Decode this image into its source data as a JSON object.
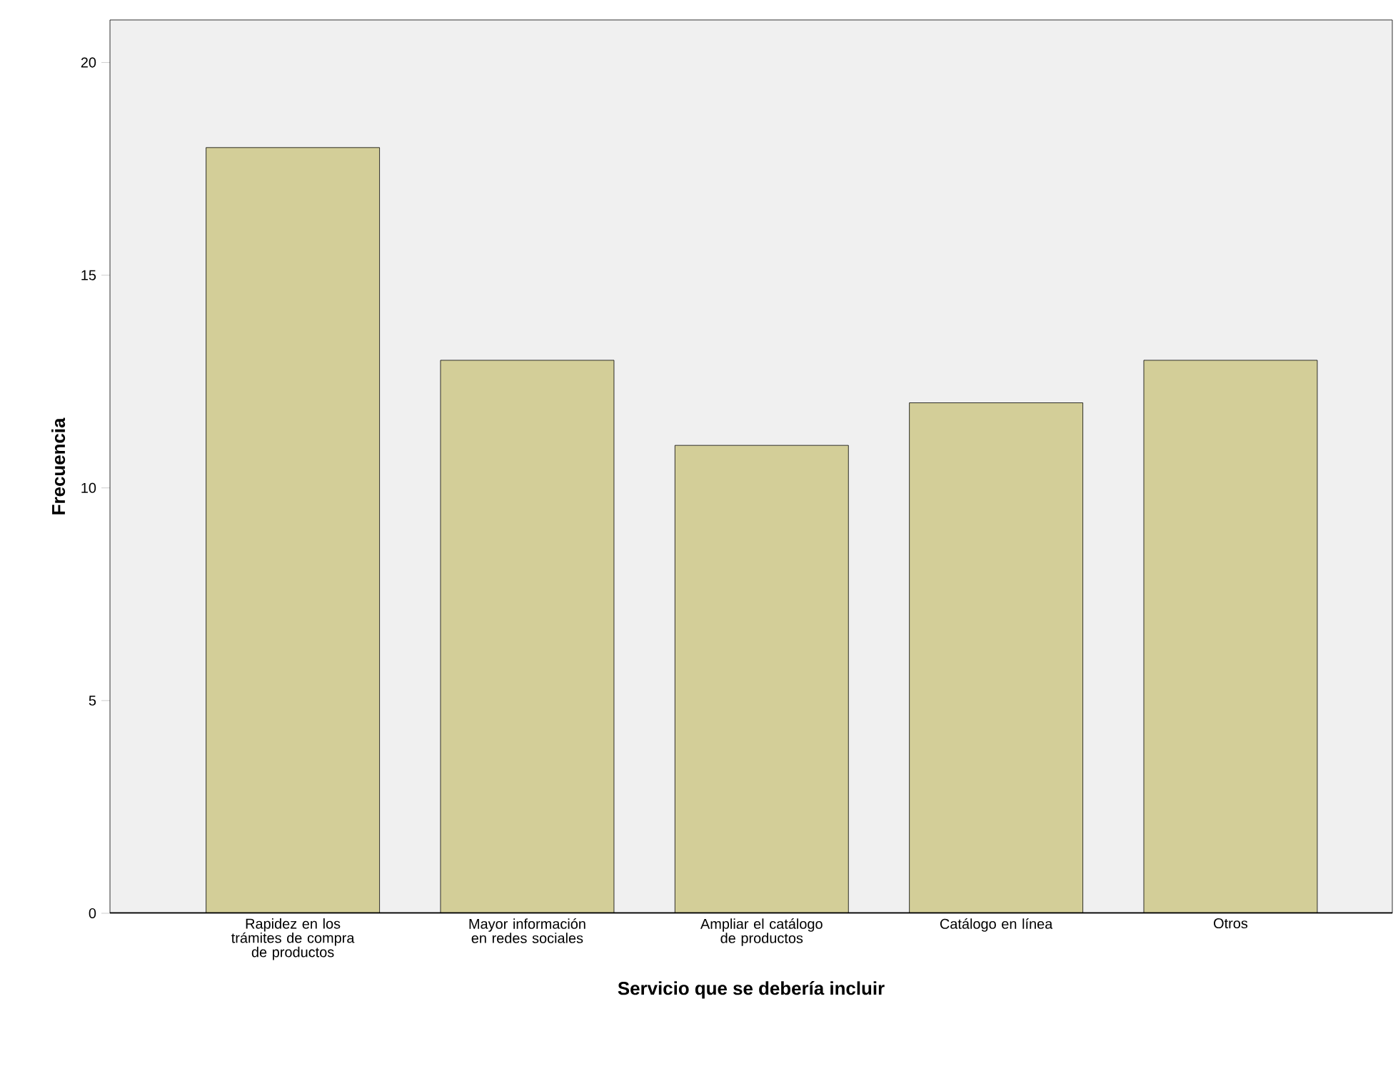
{
  "chart_data": {
    "type": "bar",
    "xlabel": "Servicio que se debería incluir",
    "ylabel": "Frecuencia",
    "categories": [
      "Rapidez en los trámites de compra de productos",
      "Mayor información en redes sociales",
      "Ampliar el catálogo de productos",
      "Catálogo en línea",
      "Otros"
    ],
    "values": [
      18,
      13,
      11,
      12,
      13
    ],
    "color": "#d3ce98",
    "ylim": [
      0,
      21
    ],
    "yticks": [
      0,
      5,
      10,
      15,
      20
    ],
    "grid": false
  }
}
